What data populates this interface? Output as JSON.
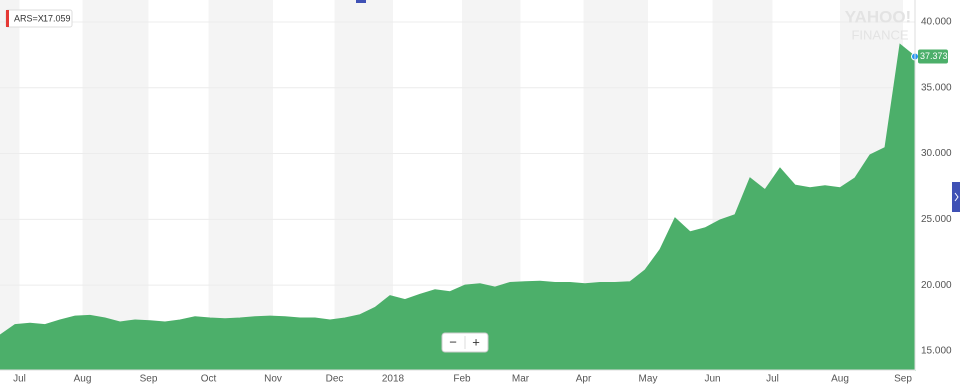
{
  "chart_data": {
    "type": "area",
    "series_name": "ARS=X",
    "legend_value": 17.059,
    "watermark": [
      "YAHOO!",
      "FINANCE"
    ],
    "zoom_controls": [
      "−",
      "+"
    ],
    "color": "#4caf6a",
    "values": [
      16.2,
      17.0,
      17.1,
      17.0,
      17.35,
      17.65,
      17.7,
      17.5,
      17.2,
      17.35,
      17.3,
      17.2,
      17.35,
      17.6,
      17.5,
      17.45,
      17.5,
      17.6,
      17.65,
      17.6,
      17.5,
      17.5,
      17.35,
      17.5,
      17.75,
      18.3,
      19.2,
      18.9,
      19.3,
      19.65,
      19.5,
      20.0,
      20.1,
      19.85,
      20.2,
      20.25,
      20.3,
      20.2,
      20.2,
      20.1,
      20.2,
      20.2,
      20.25,
      21.15,
      22.7,
      25.1,
      24.05,
      24.35,
      24.95,
      25.35,
      28.15,
      27.25,
      28.9,
      27.6,
      27.4,
      27.55,
      27.4,
      28.15,
      29.9,
      30.45,
      38.3,
      37.373
    ],
    "xlim": [
      0,
      61
    ],
    "xticks": [
      {
        "value": 1.3,
        "label": "Jul"
      },
      {
        "value": 5.5,
        "label": "Aug"
      },
      {
        "value": 9.9,
        "label": "Sep"
      },
      {
        "value": 13.9,
        "label": "Oct"
      },
      {
        "value": 18.2,
        "label": "Nov"
      },
      {
        "value": 22.3,
        "label": "Dec"
      },
      {
        "value": 26.2,
        "label": "2018"
      },
      {
        "value": 30.8,
        "label": "Feb"
      },
      {
        "value": 34.7,
        "label": "Mar"
      },
      {
        "value": 38.9,
        "label": "Apr"
      },
      {
        "value": 43.2,
        "label": "May"
      },
      {
        "value": 47.5,
        "label": "Jun"
      },
      {
        "value": 51.5,
        "label": "Jul"
      },
      {
        "value": 56.0,
        "label": "Aug"
      },
      {
        "value": 60.2,
        "label": "Sep"
      }
    ],
    "ylim": [
      13.55,
      41.67
    ],
    "yticks": [
      {
        "value": 15,
        "label": "15.000"
      },
      {
        "value": 20,
        "label": "20.000"
      },
      {
        "value": 25,
        "label": "25.000"
      },
      {
        "value": 30,
        "label": "30.000"
      },
      {
        "value": 35,
        "label": "35.000"
      },
      {
        "value": 40,
        "label": "40.000"
      }
    ],
    "grid": true
  }
}
